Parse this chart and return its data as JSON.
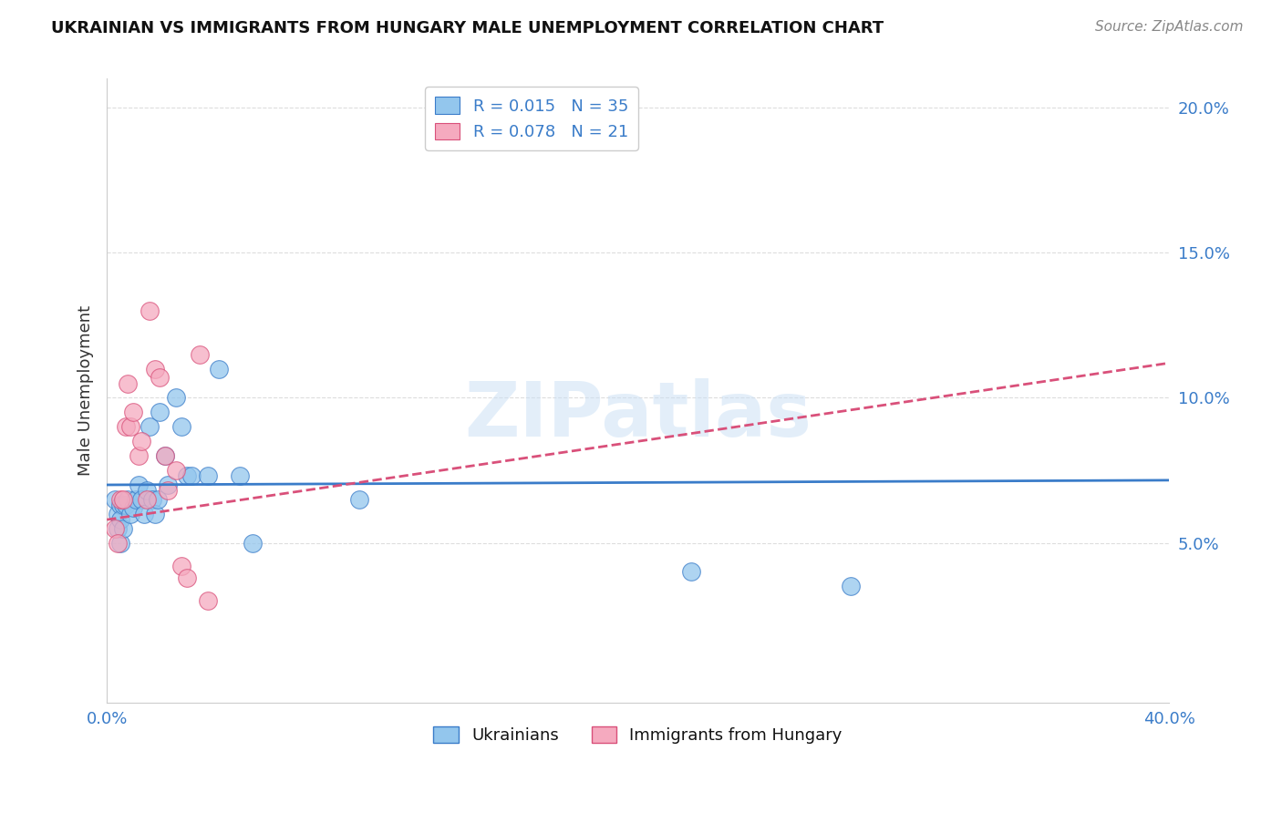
{
  "title": "UKRAINIAN VS IMMIGRANTS FROM HUNGARY MALE UNEMPLOYMENT CORRELATION CHART",
  "source": "Source: ZipAtlas.com",
  "ylabel": "Male Unemployment",
  "xlim": [
    0.0,
    0.4
  ],
  "ylim": [
    -0.005,
    0.21
  ],
  "yticks": [
    0.05,
    0.1,
    0.15,
    0.2
  ],
  "ytick_labels": [
    "5.0%",
    "10.0%",
    "15.0%",
    "20.0%"
  ],
  "blue_color": "#93C6ED",
  "pink_color": "#F5AABF",
  "blue_line_color": "#3A7CC9",
  "pink_line_color": "#D9507A",
  "watermark_text": "ZIPatlas",
  "ukrainians_x": [
    0.003,
    0.004,
    0.004,
    0.005,
    0.005,
    0.005,
    0.006,
    0.006,
    0.007,
    0.008,
    0.009,
    0.01,
    0.011,
    0.012,
    0.013,
    0.014,
    0.015,
    0.016,
    0.017,
    0.018,
    0.019,
    0.02,
    0.022,
    0.023,
    0.026,
    0.028,
    0.03,
    0.032,
    0.038,
    0.042,
    0.05,
    0.055,
    0.095,
    0.22,
    0.28
  ],
  "ukrainians_y": [
    0.065,
    0.06,
    0.055,
    0.063,
    0.058,
    0.05,
    0.063,
    0.055,
    0.063,
    0.065,
    0.06,
    0.062,
    0.065,
    0.07,
    0.065,
    0.06,
    0.068,
    0.09,
    0.065,
    0.06,
    0.065,
    0.095,
    0.08,
    0.07,
    0.1,
    0.09,
    0.073,
    0.073,
    0.073,
    0.11,
    0.073,
    0.05,
    0.065,
    0.04,
    0.035
  ],
  "hungary_x": [
    0.003,
    0.004,
    0.005,
    0.006,
    0.007,
    0.008,
    0.009,
    0.01,
    0.012,
    0.013,
    0.015,
    0.016,
    0.018,
    0.02,
    0.022,
    0.023,
    0.026,
    0.028,
    0.03,
    0.035,
    0.038
  ],
  "hungary_y": [
    0.055,
    0.05,
    0.065,
    0.065,
    0.09,
    0.105,
    0.09,
    0.095,
    0.08,
    0.085,
    0.065,
    0.13,
    0.11,
    0.107,
    0.08,
    0.068,
    0.075,
    0.042,
    0.038,
    0.115,
    0.03
  ]
}
